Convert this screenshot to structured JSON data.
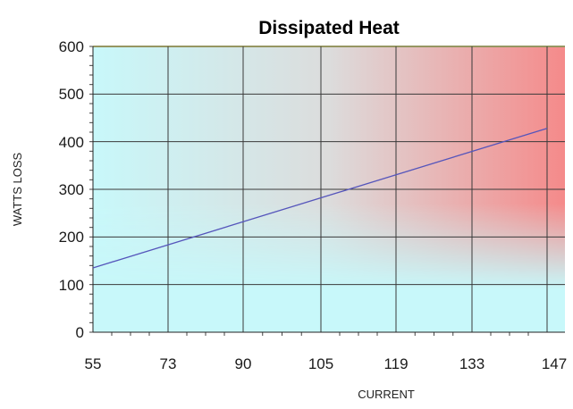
{
  "chart_data": {
    "type": "line",
    "title": "Dissipated Heat",
    "xlabel": "CURRENT",
    "ylabel": "WATTS LOSS",
    "x_tick_labels": [
      "55",
      "73",
      "90",
      "105",
      "119",
      "133",
      "147"
    ],
    "y_tick_labels": [
      "0",
      "100",
      "200",
      "300",
      "400",
      "500",
      "600"
    ],
    "ylim": [
      0,
      600
    ],
    "grid": true,
    "background": "gradient cyan (cool, bottom-left) to red (hot, top-right)",
    "series": [
      {
        "x": [
          55,
          147
        ],
        "y": [
          135,
          428
        ],
        "color": "#5555bb"
      }
    ]
  },
  "colors": {
    "cool": "#c8f8fa",
    "hot": "#f58a8a",
    "mid": "#dcdcdc",
    "line": "#5555bb",
    "grid": "#3a3a3a"
  }
}
